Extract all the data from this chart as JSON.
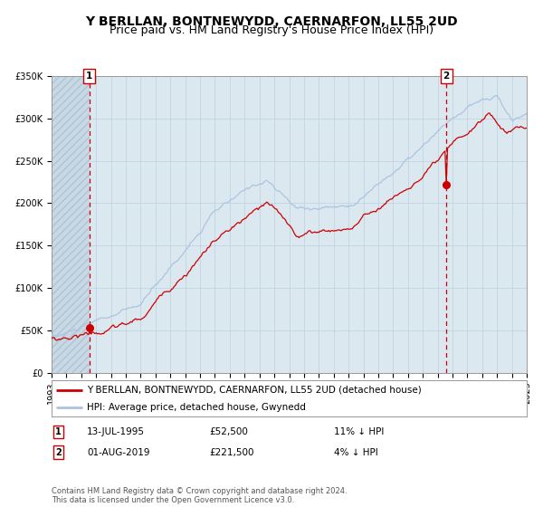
{
  "title": "Y BERLLAN, BONTNEWYDD, CAERNARFON, LL55 2UD",
  "subtitle": "Price paid vs. HM Land Registry's House Price Index (HPI)",
  "legend_line1": "Y BERLLAN, BONTNEWYDD, CAERNARFON, LL55 2UD (detached house)",
  "legend_line2": "HPI: Average price, detached house, Gwynedd",
  "annotation1_date": "13-JUL-1995",
  "annotation1_price": "£52,500",
  "annotation1_hpi": "11% ↓ HPI",
  "annotation2_date": "01-AUG-2019",
  "annotation2_price": "£221,500",
  "annotation2_hpi": "4% ↓ HPI",
  "x_start_year": 1993,
  "x_end_year": 2025,
  "y_max": 350000,
  "y_ticks": [
    0,
    50000,
    100000,
    150000,
    200000,
    250000,
    300000,
    350000
  ],
  "y_tick_labels": [
    "£0",
    "£50K",
    "£100K",
    "£150K",
    "£200K",
    "£250K",
    "£300K",
    "£350K"
  ],
  "hpi_color": "#aac4e0",
  "price_color": "#cc0000",
  "dot_color": "#cc0000",
  "vline_color": "#cc0000",
  "grid_color": "#c0d4e4",
  "bg_color": "#dce8f0",
  "hatch_bg": "#c8d8e4",
  "footer_text": "Contains HM Land Registry data © Crown copyright and database right 2024.\nThis data is licensed under the Open Government Licence v3.0.",
  "title_fontsize": 10,
  "subtitle_fontsize": 9,
  "tick_fontsize": 7,
  "legend_fontsize": 7.5,
  "annotation_fontsize": 7.5,
  "footer_fontsize": 6
}
